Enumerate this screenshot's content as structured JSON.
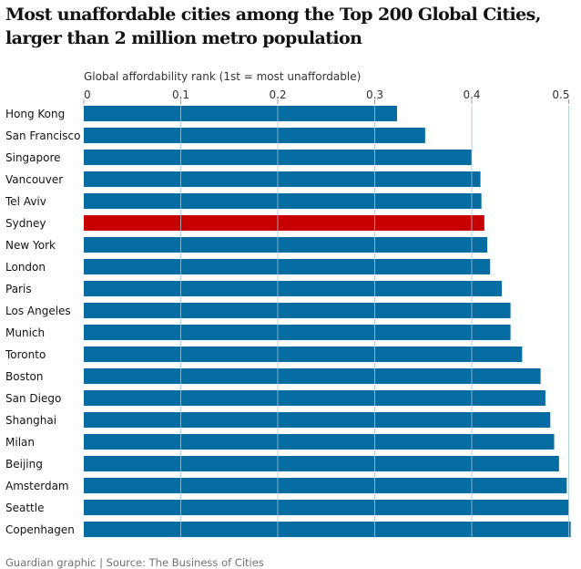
{
  "title": "Most unaffordable cities among the Top 200 Global Cities, larger than 2 million metro population",
  "source": "Guardian graphic | Source: The Business of Cities",
  "colors": {
    "bar": "#056da1",
    "highlight": "#c70000",
    "gridline": "#9fc5dc",
    "text": "#121212"
  },
  "chart_data": {
    "type": "bar",
    "orientation": "horizontal",
    "title": "Most unaffordable cities among the Top 200 Global Cities, larger than 2 million metro population",
    "xlabel": "Global affordability rank (1st = most unaffordable)",
    "ylabel": "",
    "xlim": [
      0,
      0.5
    ],
    "xticks": [
      0,
      0.1,
      0.2,
      0.3,
      0.4,
      0.5
    ],
    "xtick_labels": [
      "0",
      "0.1",
      "0.2",
      "0.3",
      "0.4",
      "0.5"
    ],
    "grid": true,
    "legend": "none",
    "highlight": "Sydney",
    "categories": [
      "Hong Kong",
      "San Francisco",
      "Singapore",
      "Vancouver",
      "Tel Aviv",
      "Sydney",
      "New York",
      "London",
      "Paris",
      "Los Angeles",
      "Munich",
      "Toronto",
      "Boston",
      "San Diego",
      "Shanghai",
      "Milan",
      "Beijing",
      "Amsterdam",
      "Seattle",
      "Copenhagen"
    ],
    "values": [
      0.323,
      0.352,
      0.4,
      0.409,
      0.41,
      0.413,
      0.416,
      0.419,
      0.431,
      0.44,
      0.44,
      0.452,
      0.471,
      0.476,
      0.481,
      0.485,
      0.49,
      0.498,
      0.5,
      0.502
    ],
    "source": "Guardian graphic | Source: The Business of Cities"
  }
}
